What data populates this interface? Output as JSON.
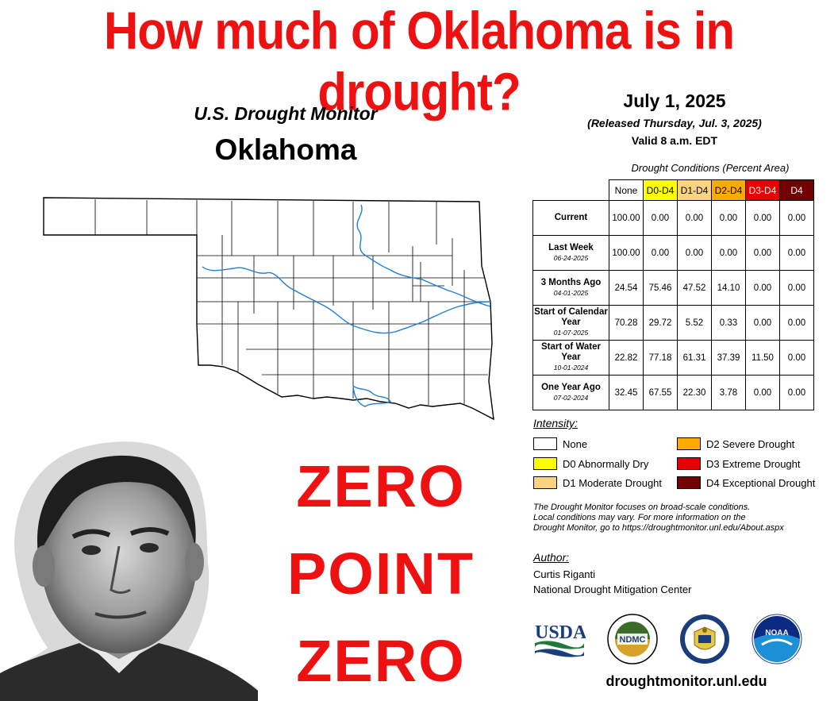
{
  "headline": "How much of Oklahoma is in drought?",
  "map": {
    "subtitle": "U.S. Drought Monitor",
    "state": "Oklahoma"
  },
  "header": {
    "date": "July 1, 2025",
    "released": "(Released Thursday, Jul. 3, 2025)",
    "valid": "Valid 8 a.m. EDT"
  },
  "table": {
    "title": "Drought Conditions (Percent Area)",
    "columns": [
      {
        "label": "None",
        "color": "#ffffff",
        "text": "#000000"
      },
      {
        "label": "D0-D4",
        "color": "#ffff00",
        "text": "#000000"
      },
      {
        "label": "D1-D4",
        "color": "#fcd37f",
        "text": "#000000"
      },
      {
        "label": "D2-D4",
        "color": "#ffaa00",
        "text": "#000000"
      },
      {
        "label": "D3-D4",
        "color": "#e60000",
        "text": "#ffffff"
      },
      {
        "label": "D4",
        "color": "#730000",
        "text": "#ffffff"
      }
    ],
    "rows": [
      {
        "label": "Current",
        "sub": "",
        "values": [
          "100.00",
          "0.00",
          "0.00",
          "0.00",
          "0.00",
          "0.00"
        ]
      },
      {
        "label": "Last Week",
        "sub": "06-24-2025",
        "values": [
          "100.00",
          "0.00",
          "0.00",
          "0.00",
          "0.00",
          "0.00"
        ]
      },
      {
        "label": "3 Months Ago",
        "sub": "04-01-2025",
        "values": [
          "24.54",
          "75.46",
          "47.52",
          "14.10",
          "0.00",
          "0.00"
        ]
      },
      {
        "label": "Start of Calendar Year",
        "sub": "01-07-2025",
        "values": [
          "70.28",
          "29.72",
          "5.52",
          "0.33",
          "0.00",
          "0.00"
        ]
      },
      {
        "label": "Start of Water Year",
        "sub": "10-01-2024",
        "values": [
          "22.82",
          "77.18",
          "61.31",
          "37.39",
          "11.50",
          "0.00"
        ]
      },
      {
        "label": "One Year Ago",
        "sub": "07-02-2024",
        "values": [
          "32.45",
          "67.55",
          "22.30",
          "3.78",
          "0.00",
          "0.00"
        ]
      }
    ]
  },
  "legend": {
    "heading": "Intensity:",
    "items": [
      {
        "label": "None",
        "color": "#ffffff"
      },
      {
        "label": "D0 Abnormally Dry",
        "color": "#ffff00"
      },
      {
        "label": "D1 Moderate Drought",
        "color": "#fcd37f"
      },
      {
        "label": "D2 Severe Drought",
        "color": "#ffaa00"
      },
      {
        "label": "D3 Extreme Drought",
        "color": "#e60000"
      },
      {
        "label": "D4 Exceptional Drought",
        "color": "#730000"
      }
    ]
  },
  "note": {
    "line1": "The Drought Monitor focuses on broad-scale conditions.",
    "line2": "Local conditions may vary. For more information on the",
    "line3": "Drought Monitor, go to https://droughtmonitor.unl.edu/About.aspx"
  },
  "author": {
    "heading": "Author:",
    "name": "Curtis Riganti",
    "org": "National Drought Mitigation Center"
  },
  "logos": {
    "usda": "USDA",
    "ndmc": "NDMC",
    "noaa": "NOAA"
  },
  "site": "droughtmonitor.unl.edu",
  "zero": {
    "line1": "ZERO",
    "line2": "POINT",
    "line3": "ZERO"
  },
  "colors": {
    "headline": "#ee1111",
    "rivers": "#1e7fd6"
  }
}
